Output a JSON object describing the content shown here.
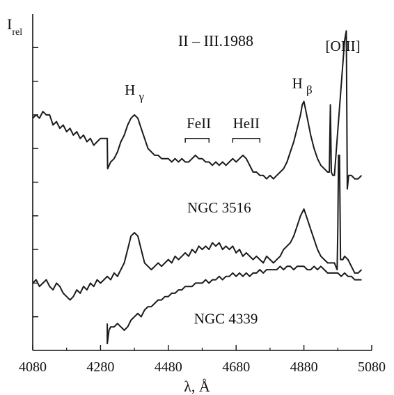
{
  "chart_data": {
    "type": "line",
    "title": "II – III.1988",
    "ylabel": "I",
    "ylabel_sub": "rel",
    "xlabel": "λ, Å",
    "xlim": [
      4080,
      5080
    ],
    "ylim": [
      0,
      1
    ],
    "grid": false,
    "x_ticks": [
      4080,
      4280,
      4480,
      4680,
      4880,
      5080
    ],
    "y_minor_tick_count": 9,
    "line_color": "#1a1a1a",
    "series": [
      {
        "label": "",
        "points": [
          [
            4080,
            0.69
          ],
          [
            4090,
            0.7
          ],
          [
            4100,
            0.69
          ],
          [
            4110,
            0.71
          ],
          [
            4120,
            0.7
          ],
          [
            4130,
            0.7
          ],
          [
            4140,
            0.67
          ],
          [
            4150,
            0.68
          ],
          [
            4160,
            0.66
          ],
          [
            4170,
            0.67
          ],
          [
            4180,
            0.65
          ],
          [
            4190,
            0.66
          ],
          [
            4200,
            0.64
          ],
          [
            4210,
            0.65
          ],
          [
            4220,
            0.63
          ],
          [
            4230,
            0.64
          ],
          [
            4240,
            0.62
          ],
          [
            4250,
            0.63
          ],
          [
            4260,
            0.61
          ],
          [
            4270,
            0.62
          ],
          [
            4280,
            0.63
          ],
          [
            4290,
            0.63
          ],
          [
            4300,
            0.63
          ],
          [
            4301,
            0.54
          ],
          [
            4310,
            0.56
          ],
          [
            4320,
            0.57
          ],
          [
            4330,
            0.59
          ],
          [
            4340,
            0.62
          ],
          [
            4350,
            0.64
          ],
          [
            4360,
            0.67
          ],
          [
            4370,
            0.69
          ],
          [
            4380,
            0.7
          ],
          [
            4390,
            0.69
          ],
          [
            4400,
            0.66
          ],
          [
            4410,
            0.63
          ],
          [
            4420,
            0.6
          ],
          [
            4430,
            0.59
          ],
          [
            4440,
            0.58
          ],
          [
            4450,
            0.58
          ],
          [
            4460,
            0.57
          ],
          [
            4470,
            0.57
          ],
          [
            4480,
            0.57
          ],
          [
            4490,
            0.56
          ],
          [
            4500,
            0.57
          ],
          [
            4510,
            0.56
          ],
          [
            4520,
            0.57
          ],
          [
            4530,
            0.56
          ],
          [
            4540,
            0.56
          ],
          [
            4550,
            0.57
          ],
          [
            4560,
            0.58
          ],
          [
            4570,
            0.57
          ],
          [
            4580,
            0.57
          ],
          [
            4590,
            0.56
          ],
          [
            4600,
            0.56
          ],
          [
            4610,
            0.55
          ],
          [
            4620,
            0.56
          ],
          [
            4630,
            0.55
          ],
          [
            4640,
            0.56
          ],
          [
            4650,
            0.55
          ],
          [
            4660,
            0.56
          ],
          [
            4670,
            0.57
          ],
          [
            4680,
            0.56
          ],
          [
            4690,
            0.57
          ],
          [
            4700,
            0.58
          ],
          [
            4710,
            0.57
          ],
          [
            4720,
            0.55
          ],
          [
            4730,
            0.53
          ],
          [
            4740,
            0.53
          ],
          [
            4750,
            0.52
          ],
          [
            4760,
            0.52
          ],
          [
            4770,
            0.51
          ],
          [
            4780,
            0.52
          ],
          [
            4790,
            0.51
          ],
          [
            4800,
            0.52
          ],
          [
            4810,
            0.53
          ],
          [
            4820,
            0.54
          ],
          [
            4830,
            0.56
          ],
          [
            4840,
            0.59
          ],
          [
            4850,
            0.62
          ],
          [
            4860,
            0.66
          ],
          [
            4870,
            0.7
          ],
          [
            4875,
            0.73
          ],
          [
            4880,
            0.74
          ],
          [
            4890,
            0.69
          ],
          [
            4900,
            0.64
          ],
          [
            4910,
            0.6
          ],
          [
            4920,
            0.57
          ],
          [
            4930,
            0.55
          ],
          [
            4940,
            0.54
          ],
          [
            4950,
            0.53
          ],
          [
            4955,
            0.53
          ],
          [
            4958,
            0.73
          ],
          [
            4961,
            0.53
          ],
          [
            4965,
            0.52
          ],
          [
            4970,
            0.52
          ],
          [
            5000,
            0.92
          ],
          [
            5005,
            0.95
          ],
          [
            5008,
            0.48
          ],
          [
            5012,
            0.52
          ],
          [
            5020,
            0.52
          ],
          [
            5030,
            0.51
          ],
          [
            5040,
            0.51
          ],
          [
            5050,
            0.52
          ]
        ]
      },
      {
        "label": "NGC 3516",
        "points": [
          [
            4080,
            0.2
          ],
          [
            4090,
            0.21
          ],
          [
            4100,
            0.19
          ],
          [
            4110,
            0.2
          ],
          [
            4120,
            0.21
          ],
          [
            4130,
            0.19
          ],
          [
            4140,
            0.18
          ],
          [
            4150,
            0.2
          ],
          [
            4160,
            0.19
          ],
          [
            4170,
            0.17
          ],
          [
            4180,
            0.16
          ],
          [
            4190,
            0.15
          ],
          [
            4200,
            0.16
          ],
          [
            4210,
            0.18
          ],
          [
            4220,
            0.17
          ],
          [
            4230,
            0.19
          ],
          [
            4240,
            0.18
          ],
          [
            4250,
            0.2
          ],
          [
            4260,
            0.19
          ],
          [
            4270,
            0.21
          ],
          [
            4280,
            0.2
          ],
          [
            4290,
            0.21
          ],
          [
            4300,
            0.22
          ],
          [
            4310,
            0.21
          ],
          [
            4320,
            0.23
          ],
          [
            4330,
            0.22
          ],
          [
            4340,
            0.24
          ],
          [
            4350,
            0.26
          ],
          [
            4360,
            0.3
          ],
          [
            4370,
            0.34
          ],
          [
            4380,
            0.35
          ],
          [
            4390,
            0.34
          ],
          [
            4400,
            0.3
          ],
          [
            4410,
            0.26
          ],
          [
            4420,
            0.25
          ],
          [
            4430,
            0.24
          ],
          [
            4440,
            0.25
          ],
          [
            4450,
            0.26
          ],
          [
            4460,
            0.25
          ],
          [
            4470,
            0.26
          ],
          [
            4480,
            0.27
          ],
          [
            4490,
            0.26
          ],
          [
            4500,
            0.28
          ],
          [
            4510,
            0.27
          ],
          [
            4520,
            0.28
          ],
          [
            4530,
            0.29
          ],
          [
            4540,
            0.28
          ],
          [
            4550,
            0.3
          ],
          [
            4560,
            0.29
          ],
          [
            4570,
            0.31
          ],
          [
            4580,
            0.3
          ],
          [
            4590,
            0.31
          ],
          [
            4600,
            0.3
          ],
          [
            4610,
            0.32
          ],
          [
            4620,
            0.31
          ],
          [
            4630,
            0.32
          ],
          [
            4640,
            0.3
          ],
          [
            4650,
            0.31
          ],
          [
            4660,
            0.3
          ],
          [
            4670,
            0.31
          ],
          [
            4680,
            0.29
          ],
          [
            4690,
            0.3
          ],
          [
            4700,
            0.28
          ],
          [
            4710,
            0.29
          ],
          [
            4720,
            0.28
          ],
          [
            4730,
            0.27
          ],
          [
            4740,
            0.28
          ],
          [
            4750,
            0.27
          ],
          [
            4760,
            0.26
          ],
          [
            4770,
            0.28
          ],
          [
            4780,
            0.27
          ],
          [
            4790,
            0.26
          ],
          [
            4800,
            0.27
          ],
          [
            4810,
            0.28
          ],
          [
            4820,
            0.3
          ],
          [
            4830,
            0.31
          ],
          [
            4840,
            0.32
          ],
          [
            4850,
            0.34
          ],
          [
            4860,
            0.37
          ],
          [
            4870,
            0.4
          ],
          [
            4880,
            0.42
          ],
          [
            4890,
            0.39
          ],
          [
            4900,
            0.36
          ],
          [
            4910,
            0.33
          ],
          [
            4920,
            0.3
          ],
          [
            4930,
            0.28
          ],
          [
            4940,
            0.27
          ],
          [
            4950,
            0.26
          ],
          [
            4960,
            0.26
          ],
          [
            4970,
            0.26
          ],
          [
            4978,
            0.24
          ],
          [
            4980,
            0.36
          ],
          [
            4982,
            0.58
          ],
          [
            4985,
            0.58
          ],
          [
            4988,
            0.27
          ],
          [
            4995,
            0.27
          ],
          [
            5000,
            0.28
          ],
          [
            5010,
            0.27
          ],
          [
            5020,
            0.25
          ],
          [
            5030,
            0.23
          ],
          [
            5040,
            0.23
          ],
          [
            5050,
            0.24
          ]
        ]
      },
      {
        "label": "NGC 4339",
        "points": [
          [
            4300,
            0.08
          ],
          [
            4300,
            0.02
          ],
          [
            4305,
            0.06
          ],
          [
            4310,
            0.07
          ],
          [
            4320,
            0.07
          ],
          [
            4330,
            0.08
          ],
          [
            4340,
            0.07
          ],
          [
            4350,
            0.06
          ],
          [
            4360,
            0.07
          ],
          [
            4370,
            0.09
          ],
          [
            4380,
            0.1
          ],
          [
            4390,
            0.11
          ],
          [
            4400,
            0.1
          ],
          [
            4410,
            0.12
          ],
          [
            4420,
            0.13
          ],
          [
            4430,
            0.13
          ],
          [
            4440,
            0.14
          ],
          [
            4450,
            0.15
          ],
          [
            4460,
            0.15
          ],
          [
            4470,
            0.16
          ],
          [
            4480,
            0.16
          ],
          [
            4490,
            0.17
          ],
          [
            4500,
            0.17
          ],
          [
            4510,
            0.18
          ],
          [
            4520,
            0.18
          ],
          [
            4530,
            0.19
          ],
          [
            4540,
            0.19
          ],
          [
            4550,
            0.19
          ],
          [
            4560,
            0.2
          ],
          [
            4570,
            0.2
          ],
          [
            4580,
            0.2
          ],
          [
            4590,
            0.21
          ],
          [
            4600,
            0.2
          ],
          [
            4610,
            0.21
          ],
          [
            4620,
            0.21
          ],
          [
            4630,
            0.22
          ],
          [
            4640,
            0.21
          ],
          [
            4650,
            0.22
          ],
          [
            4660,
            0.22
          ],
          [
            4670,
            0.23
          ],
          [
            4680,
            0.22
          ],
          [
            4690,
            0.23
          ],
          [
            4700,
            0.22
          ],
          [
            4710,
            0.23
          ],
          [
            4720,
            0.22
          ],
          [
            4730,
            0.23
          ],
          [
            4740,
            0.23
          ],
          [
            4750,
            0.24
          ],
          [
            4760,
            0.23
          ],
          [
            4770,
            0.24
          ],
          [
            4780,
            0.24
          ],
          [
            4790,
            0.24
          ],
          [
            4800,
            0.24
          ],
          [
            4810,
            0.25
          ],
          [
            4820,
            0.24
          ],
          [
            4830,
            0.25
          ],
          [
            4840,
            0.25
          ],
          [
            4850,
            0.24
          ],
          [
            4860,
            0.25
          ],
          [
            4870,
            0.25
          ],
          [
            4880,
            0.25
          ],
          [
            4890,
            0.24
          ],
          [
            4900,
            0.24
          ],
          [
            4910,
            0.25
          ],
          [
            4920,
            0.24
          ],
          [
            4930,
            0.25
          ],
          [
            4940,
            0.24
          ],
          [
            4950,
            0.23
          ],
          [
            4960,
            0.23
          ],
          [
            4970,
            0.23
          ],
          [
            4980,
            0.23
          ],
          [
            4990,
            0.22
          ],
          [
            5000,
            0.23
          ],
          [
            5010,
            0.22
          ],
          [
            5020,
            0.22
          ],
          [
            5030,
            0.21
          ],
          [
            5040,
            0.21
          ],
          [
            5050,
            0.21
          ]
        ]
      }
    ],
    "annotations": [
      {
        "text": "Hγ",
        "name": "h-gamma-label",
        "at": [
          4380,
          0.76
        ]
      },
      {
        "text": "FeII",
        "name": "feii-label",
        "at": [
          4570,
          0.66
        ],
        "bracket": [
          4530,
          4600,
          0.63
        ]
      },
      {
        "text": "HeII",
        "name": "heii-label",
        "at": [
          4710,
          0.66
        ],
        "bracket": [
          4670,
          4750,
          0.63
        ]
      },
      {
        "text": "Hβ",
        "name": "h-beta-label",
        "at": [
          4875,
          0.78
        ]
      },
      {
        "text": "[OIII]",
        "name": "oiii-label",
        "at": [
          4995,
          0.89
        ]
      },
      {
        "text": "NGC 3516",
        "name": "ngc3516-label",
        "at": [
          4630,
          0.41
        ]
      },
      {
        "text": "NGC 4339",
        "name": "ngc4339-label",
        "at": [
          4650,
          0.08
        ]
      }
    ]
  }
}
